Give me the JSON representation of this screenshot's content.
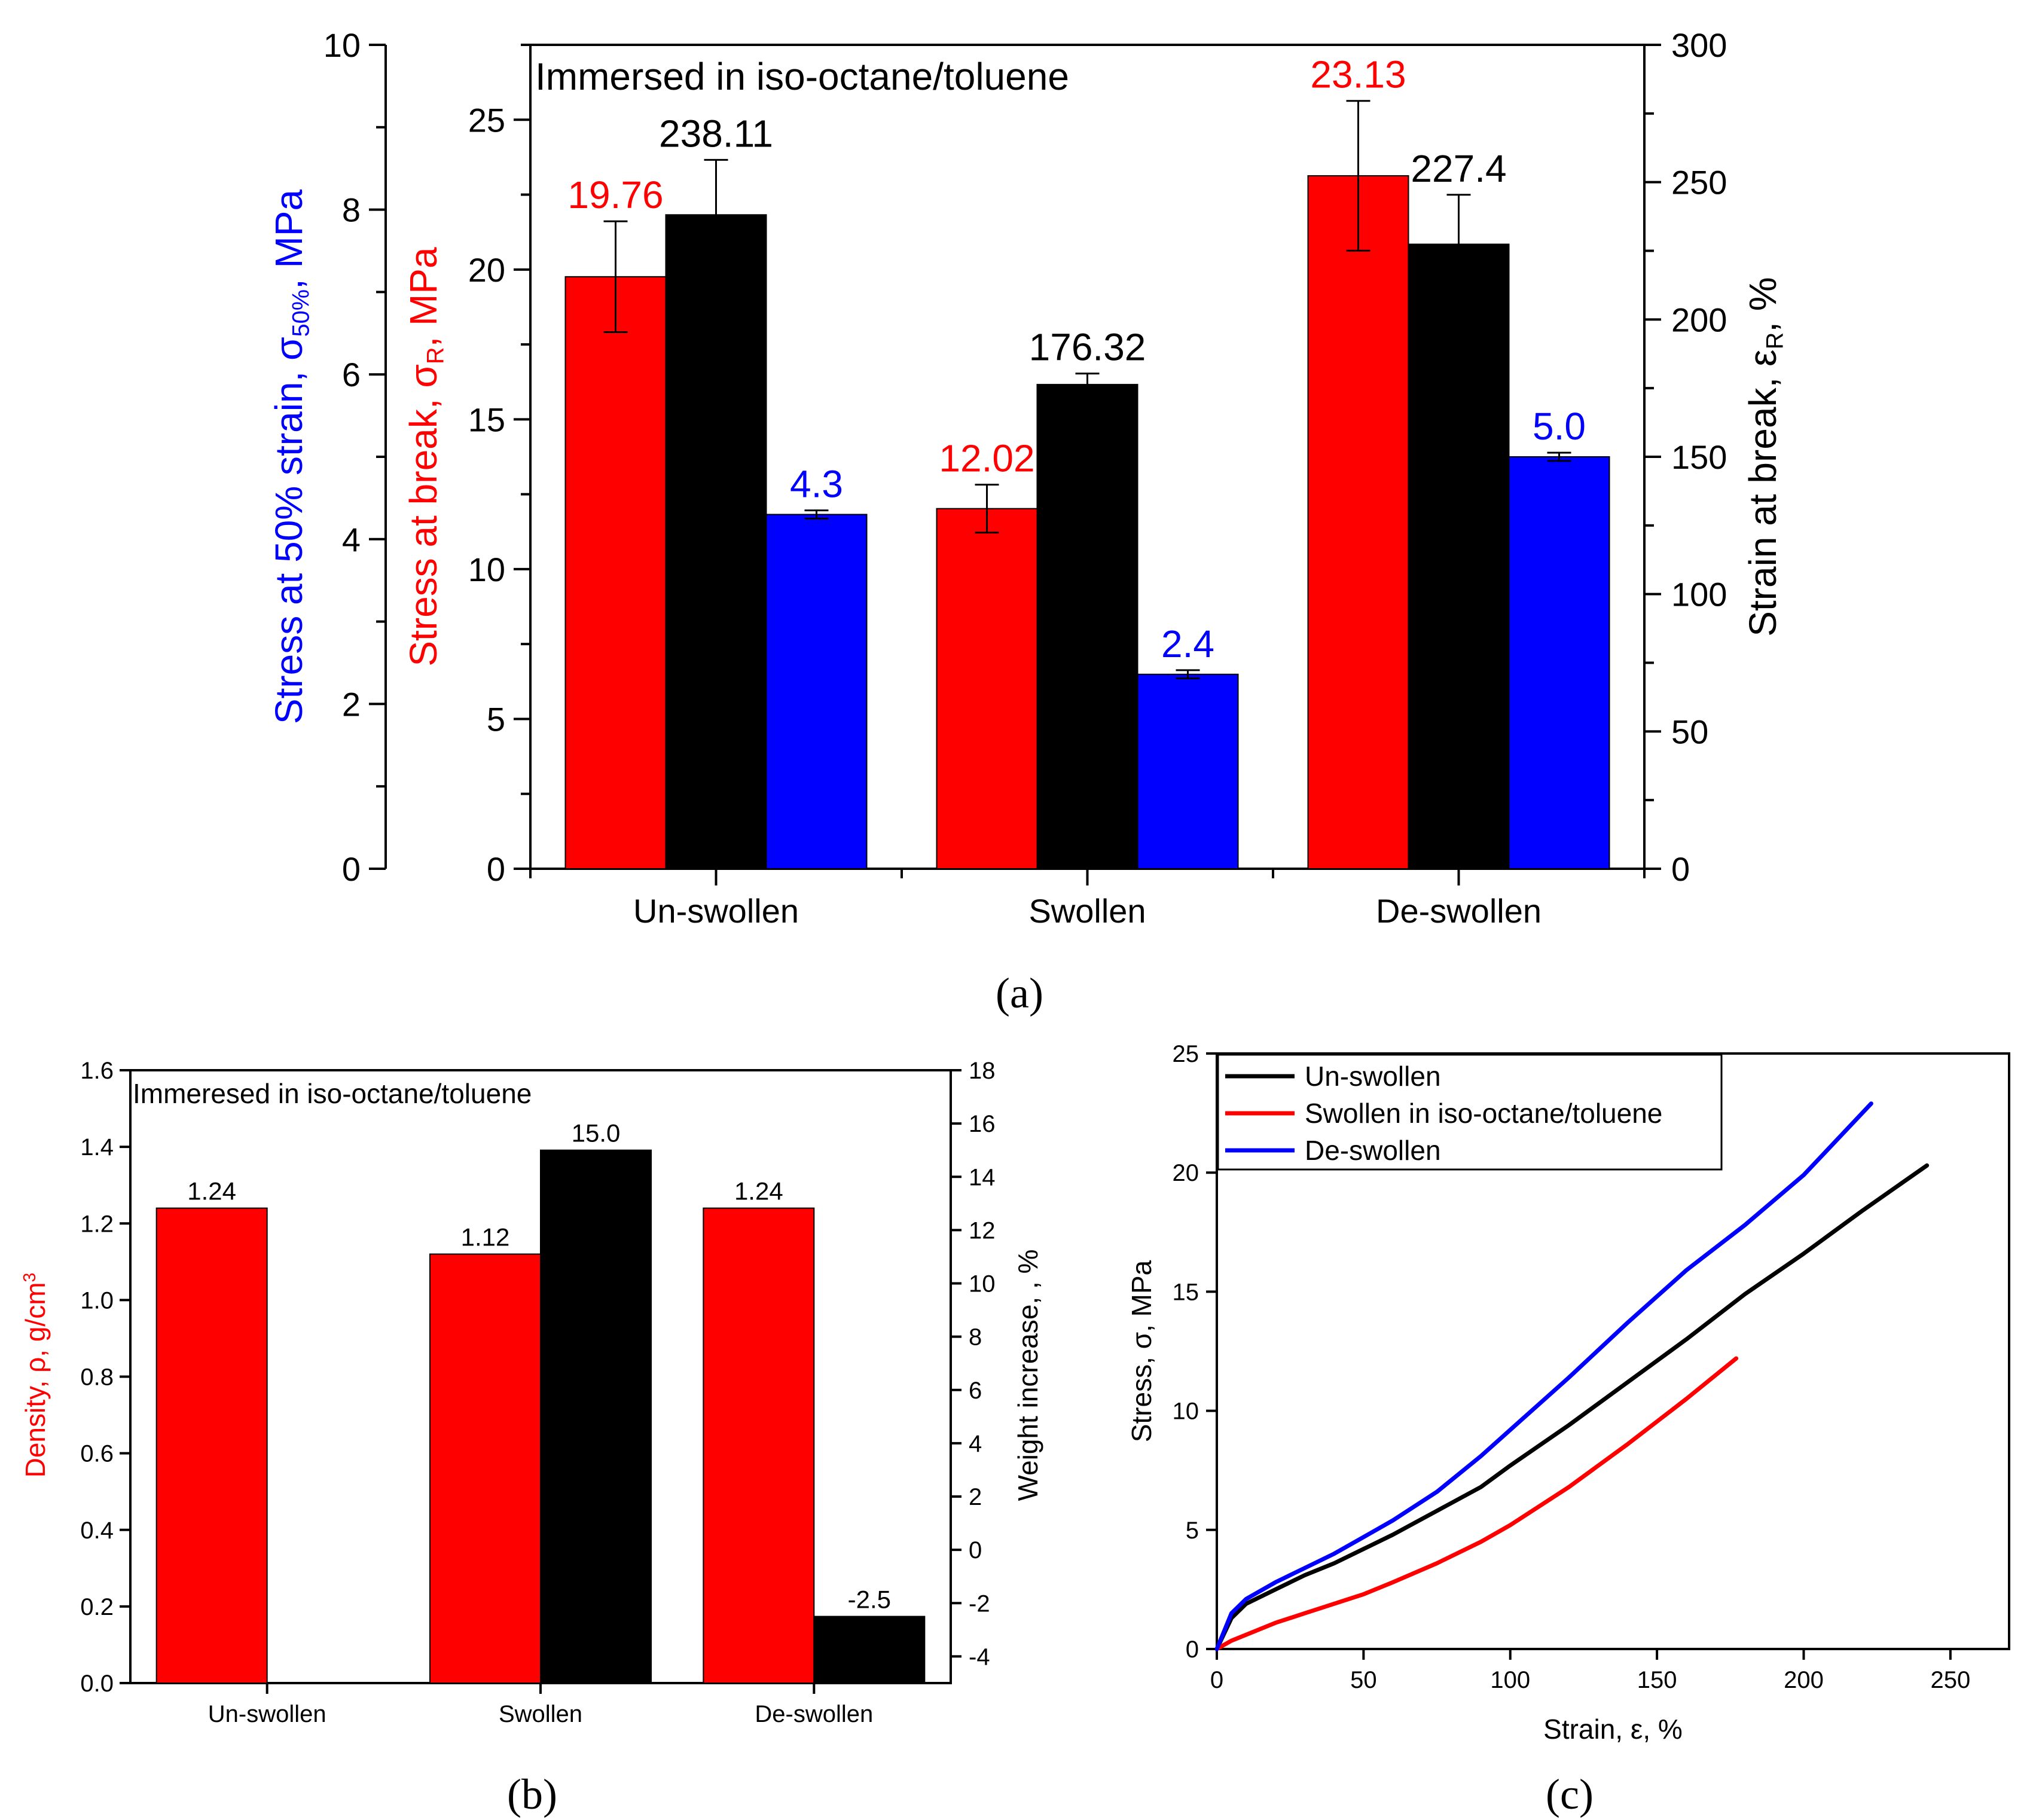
{
  "chart_data": [
    {
      "id": "a",
      "type": "bar",
      "panel_label": "(a)",
      "annotation": "Immersed in iso-octane/toluene",
      "categories": [
        "Un-swollen",
        "Swollen",
        "De-swollen"
      ],
      "y_left_outer": {
        "label": "Stress at 50% strain, σ50%, MPa",
        "min": 0,
        "max": 10,
        "ticks": [
          "0",
          "2",
          "4",
          "6",
          "8",
          "10"
        ],
        "color": "#0000ff"
      },
      "y_left_inner": {
        "label": "Stress at break, σR, MPa",
        "min": 0,
        "max": 27.5,
        "ticks": [
          "0",
          "5",
          "10",
          "15",
          "20",
          "25"
        ],
        "color": "#ff0000"
      },
      "y_right": {
        "label": "Strain at break, εR, %",
        "min": 0,
        "max": 300,
        "ticks": [
          "0",
          "50",
          "100",
          "150",
          "200",
          "250",
          "300"
        ],
        "color": "#000000"
      },
      "series": [
        {
          "name": "Stress at break",
          "axis": "y_left_inner",
          "color": "#ff0000",
          "values": [
            19.76,
            12.02,
            23.13
          ],
          "errors": [
            1.85,
            0.8,
            2.5
          ],
          "labels": [
            "19.76",
            "12.02",
            "23.13"
          ]
        },
        {
          "name": "Strain at break",
          "axis": "y_right",
          "color": "#000000",
          "values": [
            238.11,
            176.32,
            227.4
          ],
          "errors": [
            20,
            4,
            18
          ],
          "labels": [
            "238.11",
            "176.32",
            "227.4"
          ]
        },
        {
          "name": "Stress at 50% strain",
          "axis": "y_left_outer",
          "color": "#0000ff",
          "values": [
            4.3,
            2.36,
            5.0
          ],
          "errors": [
            0.05,
            0.05,
            0.05
          ],
          "labels": [
            "4.3",
            "2.4",
            "5.0"
          ]
        }
      ]
    },
    {
      "id": "b",
      "type": "bar",
      "panel_label": "(b)",
      "annotation": "Immeresed in iso-octane/toluene",
      "categories": [
        "Un-swollen",
        "Swollen",
        "De-swollen"
      ],
      "y_left": {
        "label": "Density, ρ, g/cm3",
        "min": 0,
        "max": 1.6,
        "ticks": [
          "0.0",
          "0.2",
          "0.4",
          "0.6",
          "0.8",
          "1.0",
          "1.2",
          "1.4",
          "1.6"
        ],
        "color": "#ff0000"
      },
      "y_right": {
        "label": "Weight increase, , %",
        "min": -5,
        "max": 18,
        "ticks": [
          "-4",
          "-2",
          "0",
          "2",
          "4",
          "6",
          "8",
          "10",
          "12",
          "14",
          "16",
          "18"
        ],
        "color": "#000000"
      },
      "series": [
        {
          "name": "Density",
          "axis": "y_left",
          "color": "#ff0000",
          "values": [
            1.24,
            1.12,
            1.24
          ],
          "labels": [
            "1.24",
            "1.12",
            "1.24"
          ]
        },
        {
          "name": "Weight increase",
          "axis": "y_right",
          "color": "#000000",
          "values": [
            null,
            15.0,
            -2.5
          ],
          "labels": [
            "",
            "15.0",
            "-2.5"
          ]
        }
      ]
    },
    {
      "id": "c",
      "type": "line",
      "panel_label": "(c)",
      "xlabel": "Strain, ε, %",
      "ylabel": "Stress, σ, MPa",
      "xlim": [
        0,
        270
      ],
      "ylim": [
        0,
        25
      ],
      "x_ticks": [
        "0",
        "50",
        "100",
        "150",
        "200",
        "250"
      ],
      "y_ticks": [
        "0",
        "5",
        "10",
        "15",
        "20",
        "25"
      ],
      "legend": "top-left",
      "series": [
        {
          "name": "Un-swollen",
          "color": "#000000",
          "x": [
            0,
            5,
            10,
            20,
            30,
            40,
            50,
            60,
            75,
            90,
            100,
            120,
            140,
            160,
            180,
            200,
            220,
            242
          ],
          "y": [
            0,
            1.3,
            1.9,
            2.5,
            3.1,
            3.6,
            4.2,
            4.8,
            5.8,
            6.8,
            7.7,
            9.4,
            11.2,
            13.0,
            14.9,
            16.6,
            18.4,
            20.3
          ]
        },
        {
          "name": "Swollen in iso-octane/toluene",
          "color": "#ff0000",
          "x": [
            0,
            5,
            10,
            20,
            30,
            40,
            50,
            60,
            75,
            90,
            100,
            120,
            140,
            160,
            177
          ],
          "y": [
            0,
            0.35,
            0.6,
            1.1,
            1.5,
            1.9,
            2.3,
            2.8,
            3.6,
            4.5,
            5.2,
            6.8,
            8.6,
            10.5,
            12.2
          ]
        },
        {
          "name": "De-swollen",
          "color": "#0000ff",
          "x": [
            0,
            5,
            10,
            20,
            30,
            40,
            50,
            60,
            75,
            90,
            100,
            120,
            140,
            160,
            180,
            200,
            223
          ],
          "y": [
            0,
            1.5,
            2.1,
            2.8,
            3.4,
            4.0,
            4.7,
            5.4,
            6.6,
            8.1,
            9.2,
            11.4,
            13.7,
            15.9,
            17.8,
            19.9,
            22.9
          ]
        }
      ]
    }
  ]
}
